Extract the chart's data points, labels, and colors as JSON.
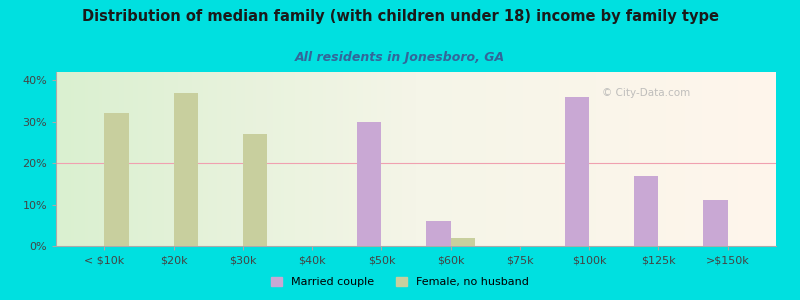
{
  "title": "Distribution of median family (with children under 18) income by family type",
  "subtitle": "All residents in Jonesboro, GA",
  "categories": [
    "< $10k",
    "$20k",
    "$30k",
    "$40k",
    "$50k",
    "$60k",
    "$75k",
    "$100k",
    "$125k",
    ">$150k"
  ],
  "married_couple": [
    0,
    0,
    0,
    0,
    30,
    6,
    0,
    36,
    17,
    11
  ],
  "female_no_husband": [
    32,
    37,
    27,
    0,
    0,
    2,
    0,
    0,
    0,
    0
  ],
  "married_color": "#c9a8d4",
  "female_color": "#c8cf9e",
  "background_color": "#00e0e0",
  "title_color": "#1a1a1a",
  "subtitle_color": "#336699",
  "ylim": [
    0,
    42
  ],
  "yticks": [
    0,
    10,
    20,
    30,
    40
  ],
  "bar_width": 0.35,
  "watermark": "© City-Data.com"
}
